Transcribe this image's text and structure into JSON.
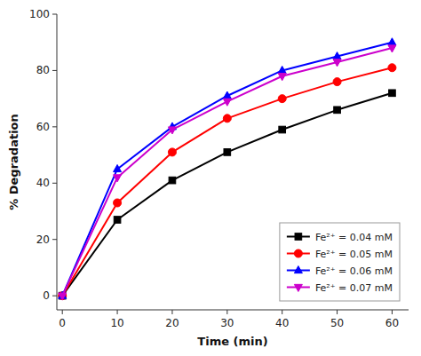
{
  "chart_data": {
    "type": "line",
    "x": [
      0,
      10,
      20,
      30,
      40,
      50,
      60
    ],
    "series": [
      {
        "name": "Fe²⁺ = 0.04 mM",
        "color": "#000000",
        "marker": "square",
        "line_style": "solid",
        "values": [
          0,
          27,
          41,
          51,
          59,
          66,
          72
        ]
      },
      {
        "name": "Fe²⁺ = 0.05 mM",
        "color": "#ff0000",
        "marker": "circle",
        "line_style": "solid",
        "values": [
          0,
          33,
          51,
          63,
          70,
          76,
          81
        ]
      },
      {
        "name": "Fe²⁺ = 0.06 mM",
        "color": "#0000ff",
        "marker": "triangle-up",
        "line_style": "solid",
        "values": [
          0,
          45,
          60,
          71,
          80,
          85,
          90
        ]
      },
      {
        "name": "Fe²⁺ = 0.07 mM",
        "color": "#cc00cc",
        "marker": "triangle-down",
        "line_style": "solid",
        "values": [
          0,
          42,
          59,
          69,
          78,
          83,
          88
        ]
      }
    ],
    "xlabel": "Time (min)",
    "ylabel": "% Degradation",
    "xlim": [
      -1,
      63
    ],
    "ylim": [
      -5,
      100
    ],
    "xticks": [
      0,
      10,
      20,
      30,
      40,
      50,
      60
    ],
    "yticks": [
      0,
      20,
      40,
      60,
      80,
      100
    ],
    "legend": "lower right",
    "grid": false
  }
}
